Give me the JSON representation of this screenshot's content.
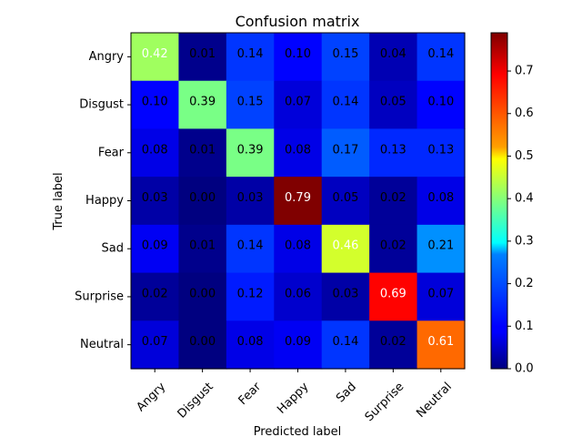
{
  "chart_data": {
    "type": "heatmap",
    "title": "Confusion matrix",
    "xlabel": "Predicted label",
    "ylabel": "True label",
    "categories": [
      "Angry",
      "Disgust",
      "Fear",
      "Happy",
      "Sad",
      "Surprise",
      "Neutral"
    ],
    "matrix": [
      [
        0.42,
        0.01,
        0.14,
        0.1,
        0.15,
        0.04,
        0.14
      ],
      [
        0.1,
        0.39,
        0.15,
        0.07,
        0.14,
        0.05,
        0.1
      ],
      [
        0.08,
        0.01,
        0.39,
        0.08,
        0.17,
        0.13,
        0.13
      ],
      [
        0.03,
        0.0,
        0.03,
        0.79,
        0.05,
        0.02,
        0.08
      ],
      [
        0.09,
        0.01,
        0.14,
        0.08,
        0.46,
        0.02,
        0.21
      ],
      [
        0.02,
        0.0,
        0.12,
        0.06,
        0.03,
        0.69,
        0.07
      ],
      [
        0.07,
        0.0,
        0.08,
        0.09,
        0.14,
        0.02,
        0.61
      ]
    ],
    "colormap": "jet",
    "colorbar": {
      "range": [
        0.0,
        0.79
      ],
      "ticks": [
        "0.0",
        "0.1",
        "0.2",
        "0.3",
        "0.4",
        "0.5",
        "0.6",
        "0.7"
      ]
    },
    "grid": false
  }
}
